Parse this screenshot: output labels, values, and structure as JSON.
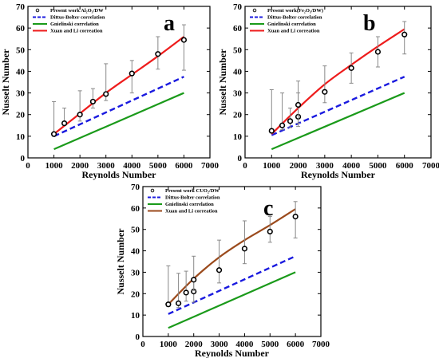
{
  "colors": {
    "dittus": "#1a1adf",
    "gnielinski": "#1a9a1a",
    "xuan_ab": "#ee1c1c",
    "xuan_c": "#9b4a1c",
    "errorbar": "#888888"
  },
  "chart_data": [
    {
      "panel_letter": "a",
      "type": "line",
      "xlabel": "Reynolds Number",
      "ylabel": "Nusselt Number",
      "xlim": [
        0,
        7000
      ],
      "ylim": [
        0,
        70
      ],
      "xticks": [
        0,
        1000,
        2000,
        3000,
        4000,
        5000,
        6000,
        7000
      ],
      "yticks": [
        0,
        10,
        20,
        30,
        40,
        50,
        60,
        70
      ],
      "legend_position": "top-left",
      "series": [
        {
          "name": "Present work Al₂O₃/DW",
          "kind": "points",
          "x": [
            1000,
            1400,
            2000,
            2500,
            3000,
            4000,
            5000,
            6000
          ],
          "y": [
            11,
            16,
            20,
            26,
            29.5,
            39,
            48,
            54.5
          ],
          "err_low": [
            1,
            1,
            3,
            3,
            3,
            9,
            7,
            14
          ],
          "err_high": [
            15,
            7,
            11,
            6,
            14,
            6,
            8,
            7
          ]
        },
        {
          "name": "Dittus-Bolter correlation",
          "kind": "dashed",
          "x": [
            1000,
            6000
          ],
          "y": [
            10,
            37.5
          ]
        },
        {
          "name": "Gnielinski correlation",
          "kind": "solid-green",
          "x": [
            1000,
            6000
          ],
          "y": [
            4,
            30
          ]
        },
        {
          "name": "Xuan and Li correation",
          "kind": "solid-red",
          "x": [
            1000,
            2000,
            3000,
            4000,
            5000,
            6000
          ],
          "y": [
            11,
            20.5,
            30,
            38.5,
            47,
            56
          ]
        }
      ]
    },
    {
      "panel_letter": "b",
      "type": "line",
      "xlabel": "Reynolds Number",
      "ylabel": "Nusselt Number",
      "xlim": [
        0,
        7000
      ],
      "ylim": [
        0,
        70
      ],
      "xticks": [
        0,
        1000,
        2000,
        3000,
        4000,
        5000,
        6000,
        7000
      ],
      "yticks": [
        0,
        10,
        20,
        30,
        40,
        50,
        60,
        70
      ],
      "legend_position": "top-left",
      "series": [
        {
          "name": "Present work(Fe₂O₃/DW)",
          "kind": "points",
          "x": [
            1000,
            1400,
            1700,
            2000,
            2000,
            3000,
            4000,
            5000,
            6000
          ],
          "y": [
            12.5,
            15,
            17,
            19,
            24.5,
            30.5,
            41.5,
            49,
            57
          ],
          "err_low": [
            1,
            2,
            3,
            3,
            10,
            5,
            7,
            7,
            9
          ],
          "err_high": [
            19,
            15,
            6,
            11,
            11,
            12,
            7,
            7,
            6
          ]
        },
        {
          "name": "Dittus-Bolter correlation",
          "kind": "dashed",
          "x": [
            1000,
            6000
          ],
          "y": [
            10.5,
            37.5
          ]
        },
        {
          "name": "Gnielinski correlation",
          "kind": "solid-green",
          "x": [
            1000,
            6000
          ],
          "y": [
            4,
            30
          ]
        },
        {
          "name": "Xuan and Li correation",
          "kind": "solid-red",
          "x": [
            1000,
            2000,
            3000,
            4000,
            5000,
            6000
          ],
          "y": [
            11,
            23,
            34,
            43,
            51.5,
            59.5
          ]
        }
      ]
    },
    {
      "panel_letter": "c",
      "type": "line",
      "xlabel": "Reynolds Number",
      "ylabel": "Nusselt Number",
      "xlim": [
        0,
        7000
      ],
      "ylim": [
        0,
        70
      ],
      "xticks": [
        0,
        1000,
        2000,
        3000,
        4000,
        5000,
        6000,
        7000
      ],
      "yticks": [
        0,
        10,
        20,
        30,
        40,
        50,
        60,
        70
      ],
      "legend_position": "top-left",
      "series": [
        {
          "name": "Present work CUO₂/DW",
          "kind": "points",
          "x": [
            1000,
            1400,
            1700,
            2000,
            2000,
            3000,
            4000,
            5000,
            6000
          ],
          "y": [
            15,
            15.5,
            20.5,
            21,
            26.5,
            31,
            41,
            49,
            56
          ],
          "err_low": [
            1,
            2,
            4,
            5,
            5,
            6,
            7,
            5,
            10
          ],
          "err_high": [
            18,
            14,
            10,
            6,
            11,
            14,
            13,
            7,
            7
          ]
        },
        {
          "name": "Dittus-Bolter correlation",
          "kind": "dashed",
          "x": [
            1000,
            6000
          ],
          "y": [
            10.5,
            37.5
          ]
        },
        {
          "name": "Gnielinski correlation",
          "kind": "solid-green",
          "x": [
            1000,
            6000
          ],
          "y": [
            4,
            30
          ]
        },
        {
          "name": "Xuan and Li correation",
          "kind": "solid-brown",
          "x": [
            1000,
            2000,
            3000,
            4000,
            5000,
            6000
          ],
          "y": [
            15,
            27,
            37,
            45,
            52,
            59.5
          ]
        }
      ]
    }
  ]
}
